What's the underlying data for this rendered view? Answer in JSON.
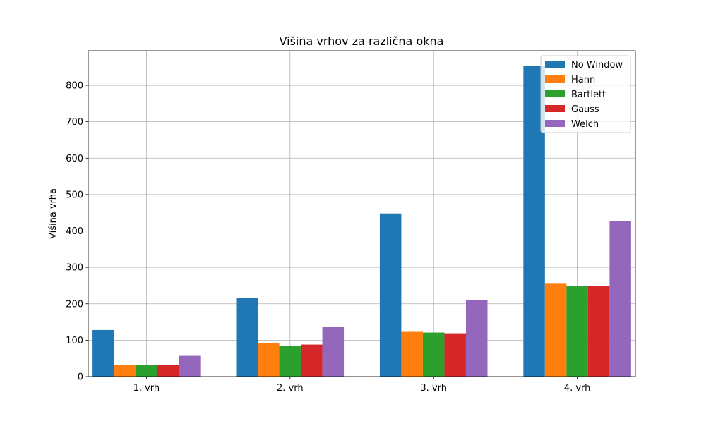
{
  "chart_data": {
    "type": "bar",
    "title": "Višina vrhov za različna okna",
    "xlabel": "",
    "ylabel": "Višina vrha",
    "categories": [
      "1. vrh",
      "2. vrh",
      "3. vrh",
      "4. vrh"
    ],
    "ylim": [
      0,
      895
    ],
    "yticks": [
      0,
      100,
      200,
      300,
      400,
      500,
      600,
      700,
      800
    ],
    "grid": true,
    "legend_position": "top-right",
    "series": [
      {
        "name": "No Window",
        "color": "#1f77b4",
        "values": [
          128,
          215,
          448,
          853
        ]
      },
      {
        "name": "Hann",
        "color": "#ff7f0e",
        "values": [
          32,
          92,
          123,
          257
        ]
      },
      {
        "name": "Bartlett",
        "color": "#2ca02c",
        "values": [
          31,
          84,
          121,
          249
        ]
      },
      {
        "name": "Gauss",
        "color": "#d62728",
        "values": [
          32,
          88,
          119,
          249
        ]
      },
      {
        "name": "Welch",
        "color": "#9467bd",
        "values": [
          57,
          136,
          210,
          427
        ]
      }
    ]
  }
}
